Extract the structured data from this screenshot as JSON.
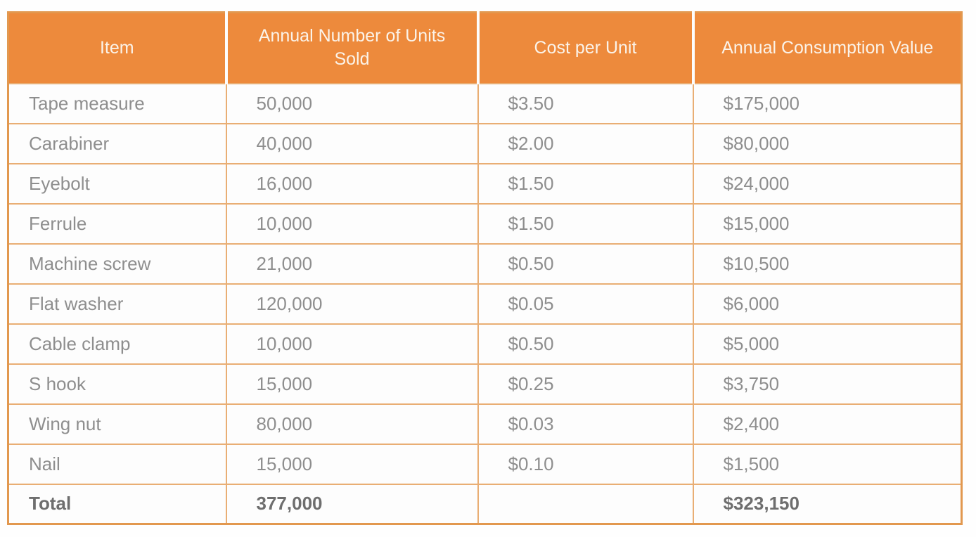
{
  "theme": {
    "header-bg": "#ED8A3C",
    "header-text": "#FBF3E9",
    "grid": "#E9AE74",
    "outer": "#E2984F",
    "body-text": "#8E8E8E",
    "total-text": "#6E6E6E",
    "cell-bg": "#FDFDFD",
    "page-bg": "#FEFEFE"
  },
  "table": {
    "columns": [
      {
        "label": "Item"
      },
      {
        "label": "Annual Number of Units Sold"
      },
      {
        "label": "Cost per Unit"
      },
      {
        "label": "Annual Consumption Value"
      }
    ],
    "rows": [
      {
        "item": "Tape measure",
        "units": "50,000",
        "cost": "$3.50",
        "value": "$175,000"
      },
      {
        "item": "Carabiner",
        "units": "40,000",
        "cost": "$2.00",
        "value": "$80,000"
      },
      {
        "item": "Eyebolt",
        "units": "16,000",
        "cost": "$1.50",
        "value": "$24,000"
      },
      {
        "item": "Ferrule",
        "units": "10,000",
        "cost": "$1.50",
        "value": "$15,000"
      },
      {
        "item": "Machine screw",
        "units": "21,000",
        "cost": "$0.50",
        "value": "$10,500"
      },
      {
        "item": "Flat washer",
        "units": "120,000",
        "cost": "$0.05",
        "value": "$6,000"
      },
      {
        "item": "Cable clamp",
        "units": "10,000",
        "cost": "$0.50",
        "value": "$5,000"
      },
      {
        "item": "S hook",
        "units": "15,000",
        "cost": "$0.25",
        "value": "$3,750"
      },
      {
        "item": "Wing nut",
        "units": "80,000",
        "cost": "$0.03",
        "value": "$2,400"
      },
      {
        "item": "Nail",
        "units": "15,000",
        "cost": "$0.10",
        "value": "$1,500"
      }
    ],
    "total_row": {
      "item": "Total",
      "units": "377,000",
      "cost": "",
      "value": "$323,150"
    }
  },
  "chart_data": {
    "type": "table",
    "title": "",
    "columns": [
      "Item",
      "Annual Number of Units Sold",
      "Cost per Unit",
      "Annual Consumption Value"
    ],
    "rows": [
      [
        "Tape measure",
        50000,
        3.5,
        175000
      ],
      [
        "Carabiner",
        40000,
        2.0,
        80000
      ],
      [
        "Eyebolt",
        16000,
        1.5,
        24000
      ],
      [
        "Ferrule",
        10000,
        1.5,
        15000
      ],
      [
        "Machine screw",
        21000,
        0.5,
        10500
      ],
      [
        "Flat washer",
        120000,
        0.05,
        6000
      ],
      [
        "Cable clamp",
        10000,
        0.5,
        5000
      ],
      [
        "S hook",
        15000,
        0.25,
        3750
      ],
      [
        "Wing nut",
        80000,
        0.03,
        2400
      ],
      [
        "Nail",
        15000,
        0.1,
        1500
      ]
    ],
    "total_row": [
      "Total",
      377000,
      null,
      323150
    ],
    "units": {
      "cost_per_unit": "USD",
      "annual_consumption_value": "USD"
    },
    "layout": {
      "header_fill": "#ED8A3C",
      "header_text": "white",
      "grid": "light-orange"
    }
  }
}
